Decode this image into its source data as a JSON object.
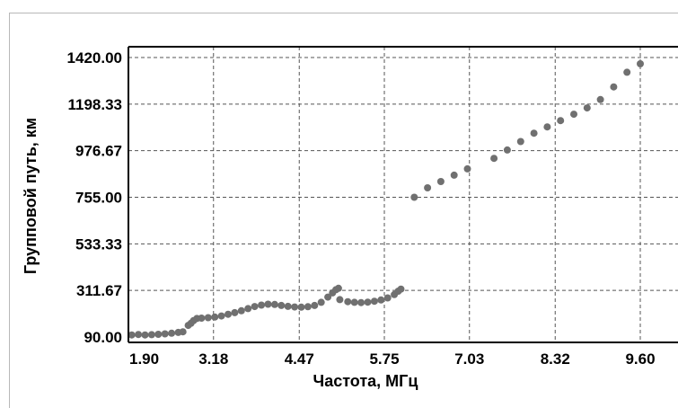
{
  "chart_data": {
    "type": "scatter",
    "title": "",
    "xlabel": "Частота, МГц",
    "ylabel": "Групповой путь, км",
    "xlim": [
      1.9,
      9.6
    ],
    "ylim": [
      90.0,
      1420.0
    ],
    "x_ticks": [
      "1.90",
      "3.18",
      "4.47",
      "5.75",
      "7.03",
      "8.32",
      "9.60"
    ],
    "y_ticks": [
      "90.00",
      "311.67",
      "533.33",
      "755.00",
      "976.67",
      "1198.33",
      "1420.00"
    ],
    "grid": true,
    "marker_color": "#707070",
    "series": [
      {
        "name": "",
        "points": [
          [
            1.95,
            100
          ],
          [
            2.05,
            102
          ],
          [
            2.15,
            100
          ],
          [
            2.25,
            101
          ],
          [
            2.35,
            103
          ],
          [
            2.45,
            105
          ],
          [
            2.55,
            108
          ],
          [
            2.65,
            112
          ],
          [
            2.72,
            115
          ],
          [
            2.8,
            145
          ],
          [
            2.84,
            155
          ],
          [
            2.88,
            168
          ],
          [
            2.93,
            178
          ],
          [
            3.0,
            180
          ],
          [
            3.1,
            182
          ],
          [
            3.2,
            185
          ],
          [
            3.3,
            190
          ],
          [
            3.4,
            198
          ],
          [
            3.5,
            206
          ],
          [
            3.6,
            215
          ],
          [
            3.7,
            225
          ],
          [
            3.8,
            235
          ],
          [
            3.9,
            242
          ],
          [
            4.0,
            246
          ],
          [
            4.1,
            245
          ],
          [
            4.2,
            240
          ],
          [
            4.3,
            236
          ],
          [
            4.4,
            233
          ],
          [
            4.5,
            232
          ],
          [
            4.6,
            234
          ],
          [
            4.7,
            240
          ],
          [
            4.8,
            255
          ],
          [
            4.9,
            280
          ],
          [
            4.97,
            300
          ],
          [
            5.02,
            315
          ],
          [
            5.06,
            322
          ],
          [
            5.08,
            268
          ],
          [
            5.2,
            258
          ],
          [
            5.3,
            255
          ],
          [
            5.4,
            254
          ],
          [
            5.5,
            256
          ],
          [
            5.6,
            260
          ],
          [
            5.7,
            266
          ],
          [
            5.8,
            276
          ],
          [
            5.9,
            292
          ],
          [
            5.96,
            308
          ],
          [
            6.0,
            318
          ],
          [
            6.2,
            755
          ],
          [
            6.4,
            800
          ],
          [
            6.6,
            830
          ],
          [
            6.8,
            860
          ],
          [
            7.0,
            890
          ],
          [
            7.4,
            940
          ],
          [
            7.6,
            980
          ],
          [
            7.8,
            1020
          ],
          [
            8.0,
            1060
          ],
          [
            8.2,
            1090
          ],
          [
            8.4,
            1120
          ],
          [
            8.6,
            1150
          ],
          [
            8.8,
            1180
          ],
          [
            9.0,
            1220
          ],
          [
            9.2,
            1280
          ],
          [
            9.4,
            1350
          ],
          [
            9.6,
            1390
          ]
        ]
      }
    ]
  }
}
